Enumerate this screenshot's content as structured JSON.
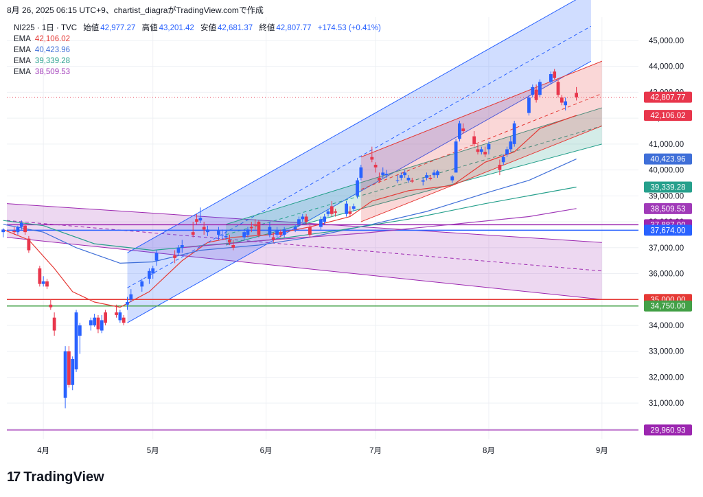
{
  "top_text": "8月 26, 2025 06:15 UTC+9、chartist_diagraがTradingView.comで作成",
  "brand": {
    "mark": "17",
    "name": "TradingView"
  },
  "legend": {
    "symbol": "NI225 · 1日 · TVC",
    "ohlc": [
      {
        "k": "始値",
        "v": "42,977.27"
      },
      {
        "k": "高値",
        "v": "43,201.42"
      },
      {
        "k": "安値",
        "v": "42,681.37"
      },
      {
        "k": "終値",
        "v": "42,807.77"
      }
    ],
    "change": "+174.53 (+0.41%)",
    "emas": [
      {
        "label": "EMA",
        "value": "42,106.02",
        "color": "#e53935"
      },
      {
        "label": "EMA",
        "value": "40,423.96",
        "color": "#3f6fd8"
      },
      {
        "label": "EMA",
        "value": "39,339.28",
        "color": "#26a08c"
      },
      {
        "label": "EMA",
        "value": "38,509.53",
        "color": "#a03ab8"
      }
    ]
  },
  "chart_data": {
    "type": "candlestick",
    "y_ticks": [
      "45,000.00",
      "44,000.00",
      "43,000.00",
      "42,000.00",
      "41,000.00",
      "40,000.00",
      "39,000.00",
      "38,000.00",
      "37,000.00",
      "36,000.00",
      "35,000.00",
      "34,000.00",
      "33,000.00",
      "32,000.00",
      "31,000.00",
      "30,000.00"
    ],
    "ylim": [
      29600,
      45900
    ],
    "x_ticks": [
      {
        "label": "4月",
        "date": "2025-04-01"
      },
      {
        "label": "5月",
        "date": "2025-05-01"
      },
      {
        "label": "6月",
        "date": "2025-06-01"
      },
      {
        "label": "7月",
        "date": "2025-07-01"
      },
      {
        "label": "8月",
        "date": "2025-08-01"
      },
      {
        "label": "9月",
        "date": "2025-09-01"
      }
    ],
    "xlim": [
      "2025-03-22",
      "2025-09-11"
    ],
    "up_color": "#2962ff",
    "down_color": "#e8364c",
    "candles": [
      [
        "2025-03-21",
        37600,
        37750,
        37400,
        37700
      ],
      [
        "2025-03-24",
        37650,
        37800,
        37500,
        37600
      ],
      [
        "2025-03-25",
        37600,
        37850,
        37500,
        37800
      ],
      [
        "2025-03-26",
        37800,
        38050,
        37700,
        37950
      ],
      [
        "2025-03-27",
        37850,
        37900,
        37500,
        37600
      ],
      [
        "2025-03-28",
        37350,
        37450,
        36800,
        36900
      ],
      [
        "2025-03-31",
        36200,
        36300,
        35500,
        35600
      ],
      [
        "2025-04-01",
        35600,
        35900,
        35500,
        35700
      ],
      [
        "2025-04-02",
        35700,
        35800,
        35400,
        35500
      ],
      [
        "2025-04-03",
        34800,
        35000,
        34600,
        34700
      ],
      [
        "2025-04-04",
        34300,
        34500,
        33600,
        33800
      ],
      [
        "2025-04-07",
        31200,
        33200,
        30800,
        33000
      ],
      [
        "2025-04-08",
        33000,
        33200,
        31600,
        31700
      ],
      [
        "2025-04-09",
        31700,
        32800,
        31500,
        32700
      ],
      [
        "2025-04-10",
        32300,
        34600,
        32200,
        34500
      ],
      [
        "2025-04-11",
        33600,
        34100,
        32900,
        34000
      ],
      [
        "2025-04-14",
        34000,
        34300,
        33800,
        34200
      ],
      [
        "2025-04-15",
        34000,
        34450,
        33950,
        34300
      ],
      [
        "2025-04-16",
        34300,
        34400,
        33700,
        33850
      ],
      [
        "2025-04-17",
        33800,
        34400,
        33700,
        34200
      ],
      [
        "2025-04-18",
        34500,
        34600,
        34000,
        34100
      ],
      [
        "2025-04-21",
        34500,
        34800,
        34300,
        34400
      ],
      [
        "2025-04-22",
        34200,
        34600,
        34100,
        34500
      ],
      [
        "2025-04-23",
        34300,
        34400,
        34000,
        34100
      ],
      [
        "2025-04-24",
        34800,
        35100,
        34600,
        34900
      ],
      [
        "2025-04-25",
        35000,
        35400,
        34900,
        35200
      ],
      [
        "2025-04-28",
        35500,
        35800,
        35300,
        35700
      ],
      [
        "2025-04-30",
        35800,
        36200,
        35600,
        36100
      ],
      [
        "2025-05-01",
        36000,
        36300,
        35800,
        36200
      ],
      [
        "2025-05-02",
        36500,
        36900,
        36300,
        36800
      ],
      [
        "2025-05-07",
        36700,
        36900,
        36400,
        36600
      ],
      [
        "2025-05-08",
        36800,
        37100,
        36700,
        37000
      ],
      [
        "2025-05-09",
        37000,
        37300,
        36800,
        37100
      ],
      [
        "2025-05-12",
        37600,
        38000,
        37400,
        37500
      ],
      [
        "2025-05-13",
        38100,
        38300,
        37900,
        38000
      ],
      [
        "2025-05-14",
        38050,
        38550,
        37950,
        38150
      ],
      [
        "2025-05-15",
        37800,
        38000,
        37500,
        37700
      ],
      [
        "2025-05-16",
        37600,
        37850,
        37450,
        37700
      ],
      [
        "2025-05-19",
        37500,
        37800,
        37300,
        37650
      ],
      [
        "2025-05-20",
        37500,
        37700,
        37300,
        37500
      ],
      [
        "2025-05-21",
        37400,
        37650,
        37300,
        37450
      ],
      [
        "2025-05-22",
        37300,
        37500,
        37100,
        37200
      ],
      [
        "2025-05-23",
        37100,
        37300,
        36900,
        37000
      ],
      [
        "2025-05-26",
        37400,
        37700,
        37300,
        37600
      ],
      [
        "2025-05-27",
        37500,
        37800,
        37400,
        37700
      ],
      [
        "2025-05-28",
        37800,
        38000,
        37600,
        37750
      ],
      [
        "2025-05-29",
        37900,
        38100,
        37700,
        37850
      ],
      [
        "2025-05-30",
        38000,
        38050,
        37400,
        37500
      ],
      [
        "2025-06-02",
        37500,
        38000,
        37400,
        37800
      ],
      [
        "2025-06-03",
        37400,
        37600,
        37200,
        37300
      ],
      [
        "2025-06-04",
        37500,
        37800,
        37400,
        37650
      ],
      [
        "2025-06-05",
        37600,
        37700,
        37400,
        37500
      ],
      [
        "2025-06-06",
        37500,
        37800,
        37400,
        37700
      ],
      [
        "2025-06-09",
        37700,
        37900,
        37600,
        37800
      ],
      [
        "2025-06-10",
        37900,
        38200,
        37800,
        38100
      ],
      [
        "2025-06-11",
        38100,
        38300,
        38000,
        38200
      ],
      [
        "2025-06-12",
        38200,
        38300,
        37900,
        38000
      ],
      [
        "2025-06-13",
        37800,
        37900,
        37400,
        37500
      ],
      [
        "2025-06-16",
        37800,
        38200,
        37700,
        38100
      ],
      [
        "2025-06-17",
        38000,
        38300,
        37900,
        38200
      ],
      [
        "2025-06-18",
        38300,
        38500,
        38200,
        38400
      ],
      [
        "2025-06-19",
        38600,
        38800,
        38200,
        38300
      ],
      [
        "2025-06-20",
        38400,
        38500,
        38200,
        38350
      ],
      [
        "2025-06-23",
        38300,
        38800,
        38200,
        38700
      ],
      [
        "2025-06-24",
        38400,
        38600,
        38200,
        38300
      ],
      [
        "2025-06-25",
        38500,
        38700,
        38400,
        38600
      ],
      [
        "2025-06-26",
        39000,
        39700,
        38900,
        39600
      ],
      [
        "2025-06-27",
        39700,
        40200,
        39600,
        40100
      ],
      [
        "2025-06-30",
        40500,
        40900,
        40300,
        40400
      ],
      [
        "2025-07-01",
        40200,
        40300,
        39900,
        40100
      ],
      [
        "2025-07-02",
        39700,
        39900,
        39500,
        39600
      ],
      [
        "2025-07-03",
        39800,
        40100,
        39700,
        39900
      ],
      [
        "2025-07-04",
        39800,
        40000,
        39700,
        39850
      ],
      [
        "2025-07-07",
        39600,
        39800,
        39500,
        39600
      ],
      [
        "2025-07-08",
        39700,
        39900,
        39600,
        39800
      ],
      [
        "2025-07-09",
        39800,
        40000,
        39700,
        39900
      ],
      [
        "2025-07-10",
        39600,
        39800,
        39500,
        39700
      ],
      [
        "2025-07-11",
        39600,
        39700,
        39500,
        39550
      ],
      [
        "2025-07-14",
        39550,
        39700,
        39400,
        39600
      ],
      [
        "2025-07-15",
        39700,
        39900,
        39600,
        39800
      ],
      [
        "2025-07-16",
        39700,
        39800,
        39600,
        39650
      ],
      [
        "2025-07-17",
        39800,
        40000,
        39700,
        39900
      ],
      [
        "2025-07-18",
        39800,
        40000,
        39700,
        39950
      ],
      [
        "2025-07-22",
        39600,
        39800,
        39500,
        39750
      ],
      [
        "2025-07-23",
        39900,
        41200,
        39900,
        41100
      ],
      [
        "2025-07-24",
        41200,
        41900,
        41100,
        41800
      ],
      [
        "2025-07-25",
        41600,
        41800,
        41400,
        41500
      ],
      [
        "2025-07-28",
        41300,
        41500,
        40900,
        41000
      ],
      [
        "2025-07-29",
        40800,
        41000,
        40600,
        40700
      ],
      [
        "2025-07-30",
        40700,
        40900,
        40600,
        40800
      ],
      [
        "2025-07-31",
        40700,
        40900,
        40500,
        40600
      ],
      [
        "2025-08-01",
        40800,
        41100,
        40600,
        41000
      ],
      [
        "2025-08-04",
        40200,
        40400,
        39800,
        40000
      ],
      [
        "2025-08-05",
        40300,
        40600,
        40200,
        40500
      ],
      [
        "2025-08-06",
        40600,
        40900,
        40500,
        40800
      ],
      [
        "2025-08-07",
        40800,
        41300,
        40700,
        41100
      ],
      [
        "2025-08-08",
        41000,
        41900,
        40900,
        41800
      ],
      [
        "2025-08-12",
        42200,
        42900,
        42100,
        42800
      ],
      [
        "2025-08-13",
        42900,
        43300,
        42800,
        43200
      ],
      [
        "2025-08-14",
        43100,
        43300,
        42600,
        42700
      ],
      [
        "2025-08-15",
        42900,
        43500,
        42800,
        43400
      ],
      [
        "2025-08-18",
        43400,
        43800,
        43300,
        43700
      ],
      [
        "2025-08-19",
        43800,
        43900,
        43500,
        43550
      ],
      [
        "2025-08-20",
        43400,
        43500,
        42800,
        42900
      ],
      [
        "2025-08-21",
        42800,
        42900,
        42500,
        42600
      ],
      [
        "2025-08-22",
        42500,
        42800,
        42300,
        42650
      ],
      [
        "2025-08-25",
        42977.27,
        43201.42,
        42681.37,
        42807.77
      ]
    ],
    "ema_lines": [
      {
        "name": "EMA",
        "color": "#e53935",
        "points": [
          [
            "2025-03-21",
            37700
          ],
          [
            "2025-03-28",
            37300
          ],
          [
            "2025-04-04",
            36200
          ],
          [
            "2025-04-09",
            35300
          ],
          [
            "2025-04-15",
            34900
          ],
          [
            "2025-04-22",
            34700
          ],
          [
            "2025-04-30",
            35300
          ],
          [
            "2025-05-09",
            36500
          ],
          [
            "2025-05-16",
            37200
          ],
          [
            "2025-05-23",
            37400
          ],
          [
            "2025-06-02",
            37500
          ],
          [
            "2025-06-13",
            37800
          ],
          [
            "2025-06-24",
            38200
          ],
          [
            "2025-06-30",
            38800
          ],
          [
            "2025-07-10",
            39200
          ],
          [
            "2025-07-22",
            39400
          ],
          [
            "2025-07-31",
            40300
          ],
          [
            "2025-08-08",
            40700
          ],
          [
            "2025-08-15",
            41600
          ],
          [
            "2025-08-25",
            42106.02
          ]
        ]
      },
      {
        "name": "EMA",
        "color": "#3f6fd8",
        "points": [
          [
            "2025-03-21",
            37900
          ],
          [
            "2025-04-01",
            37600
          ],
          [
            "2025-04-10",
            37000
          ],
          [
            "2025-04-22",
            36400
          ],
          [
            "2025-05-01",
            36450
          ],
          [
            "2025-05-14",
            36900
          ],
          [
            "2025-05-30",
            37100
          ],
          [
            "2025-06-13",
            37400
          ],
          [
            "2025-06-30",
            37900
          ],
          [
            "2025-07-15",
            38400
          ],
          [
            "2025-07-31",
            39100
          ],
          [
            "2025-08-12",
            39600
          ],
          [
            "2025-08-25",
            40423.96
          ]
        ]
      },
      {
        "name": "EMA",
        "color": "#26a08c",
        "points": [
          [
            "2025-03-21",
            38050
          ],
          [
            "2025-04-01",
            37850
          ],
          [
            "2025-04-15",
            37150
          ],
          [
            "2025-05-01",
            36900
          ],
          [
            "2025-05-16",
            37100
          ],
          [
            "2025-06-02",
            37300
          ],
          [
            "2025-06-20",
            37650
          ],
          [
            "2025-07-10",
            38100
          ],
          [
            "2025-07-31",
            38700
          ],
          [
            "2025-08-25",
            39339.28
          ]
        ]
      },
      {
        "name": "EMA",
        "color": "#a03ab8",
        "points": [
          [
            "2025-05-09",
            37000
          ],
          [
            "2025-06-02",
            37300
          ],
          [
            "2025-06-27",
            37550
          ],
          [
            "2025-07-22",
            37900
          ],
          [
            "2025-08-12",
            38200
          ],
          [
            "2025-08-25",
            38509.53
          ]
        ]
      }
    ],
    "price_labels": [
      {
        "value": "42,807.77",
        "y": 42807.77,
        "color": "#e8364c"
      },
      {
        "value": "42,106.02",
        "y": 42106.02,
        "color": "#e8364c"
      },
      {
        "value": "40,423.96",
        "y": 40423.96,
        "color": "#3f6fd8"
      },
      {
        "value": "39,339.28",
        "y": 39339.28,
        "color": "#26a08c"
      },
      {
        "value": "38,509.53",
        "y": 38509.53,
        "color": "#a03ab8"
      },
      {
        "value": "37,887.00",
        "y": 37887,
        "color": "#9c27b0"
      },
      {
        "value": "37,674.00",
        "y": 37674,
        "color": "#2962ff"
      },
      {
        "value": "35,000.00",
        "y": 35000,
        "color": "#e53935"
      },
      {
        "value": "34,750.00",
        "y": 34750,
        "color": "#43a047"
      },
      {
        "value": "29,960.93",
        "y": 29960.93,
        "color": "#9c27b0"
      }
    ],
    "horizontal_lines": [
      {
        "y": 37887,
        "color": "#9c27b0"
      },
      {
        "y": 37674,
        "color": "#2962ff"
      },
      {
        "y": 35000,
        "color": "#e53935"
      },
      {
        "y": 34750,
        "color": "#43a047"
      },
      {
        "y": 29960.93,
        "color": "#9c27b0"
      }
    ],
    "channels": [
      {
        "color": "#9c27b0",
        "fill": "rgba(156,39,176,0.18)",
        "x0": "2025-03-22",
        "x1": "2025-09-01",
        "upper": [
          38700,
          37200
        ],
        "lower": [
          37400,
          35000
        ]
      },
      {
        "color": "#2962ff",
        "fill": "rgba(41,98,255,0.22)",
        "x0": "2025-04-24",
        "x1": "2025-08-29",
        "upper": [
          36800,
          46900
        ],
        "lower": [
          34100,
          44200
        ]
      },
      {
        "color": "#26a08c",
        "fill": "rgba(38,160,140,0.20)",
        "x0": "2025-05-21",
        "x1": "2025-09-01",
        "upper": [
          37900,
          42400
        ],
        "lower": [
          37100,
          41000
        ]
      },
      {
        "color": "#e53935",
        "fill": "rgba(229,57,53,0.20)",
        "x0": "2025-06-27",
        "x1": "2025-09-01",
        "upper": [
          40500,
          44200
        ],
        "lower": [
          38000,
          41700
        ]
      }
    ],
    "last_price": 42807.77
  }
}
